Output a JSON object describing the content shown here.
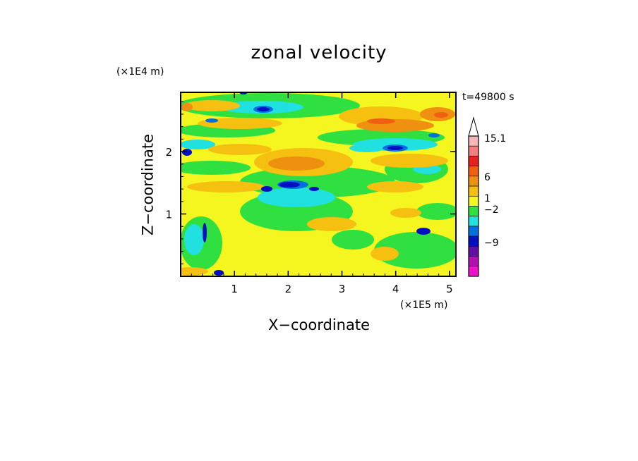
{
  "chart_data": {
    "type": "heatmap",
    "title": "zonal velocity",
    "xlabel": "X−coordinate",
    "ylabel": "Z−coordinate",
    "x_scale_label": "(×1E5 m)",
    "y_scale_label": "(×1E4 m)",
    "time_label": "t=49800 s",
    "xlim": [
      0,
      5.12
    ],
    "ylim": [
      0,
      2.95
    ],
    "x_ticks": [
      1,
      2,
      3,
      4,
      5
    ],
    "y_ticks": [
      1,
      2
    ],
    "x_tick_labels": [
      "1",
      "2",
      "3",
      "4",
      "5"
    ],
    "y_tick_labels": [
      "1",
      "2"
    ],
    "colorbar": {
      "labels": [
        "15.1",
        "6",
        "1",
        "−2",
        "−9"
      ],
      "colors": [
        "#f5b8b8",
        "#f08080",
        "#e82020",
        "#f06010",
        "#f09010",
        "#f5c010",
        "#f5f520",
        "#30e040",
        "#20e0e0",
        "#0070e0",
        "#0010c0",
        "#6010a0",
        "#b010b0",
        "#f010d0"
      ]
    },
    "palette": {
      "yellow": "#f5f520",
      "green": "#30e040",
      "cyan": "#20e0e0",
      "gold": "#f5c010",
      "orange": "#f09010",
      "deep_orange": "#f06010",
      "blue": "#0010c0",
      "mid_blue": "#0070e0"
    }
  }
}
